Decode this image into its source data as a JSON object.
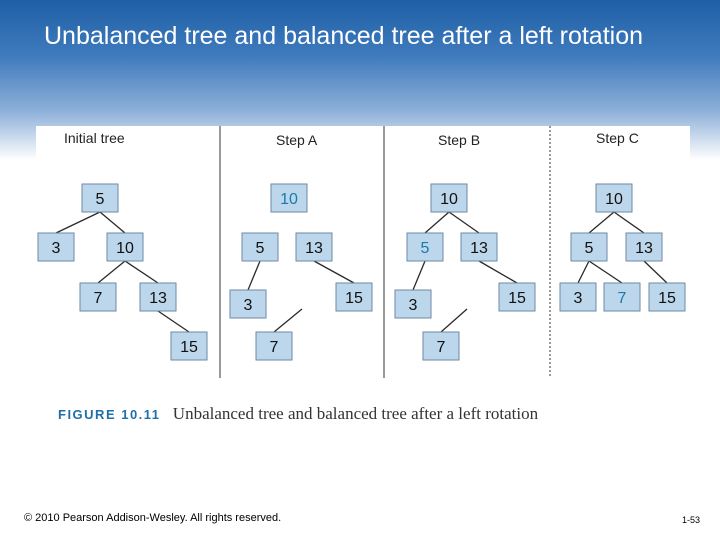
{
  "slide": {
    "title": "Unbalanced tree and balanced tree after a left rotation",
    "footer_copyright": "© 2010 Pearson Addison-Wesley. All rights reserved.",
    "page_number": "1-53"
  },
  "figure": {
    "label": "FIGURE 10.11",
    "caption": "Unbalanced tree and balanced tree after a left rotation",
    "panels": [
      {
        "title": "Initial tree"
      },
      {
        "title": "Step A"
      },
      {
        "title": "Step B"
      },
      {
        "title": "Step C"
      }
    ]
  },
  "colors": {
    "node_fill": "#bcd6ec",
    "node_stroke": "#6e8aa3",
    "highlight_text": "#1b7aa8",
    "edge": "#2a2a2a"
  },
  "trees": [
    {
      "panel": "Initial tree",
      "nodes": [
        {
          "id": "n5",
          "value": "5"
        },
        {
          "id": "n3",
          "value": "3"
        },
        {
          "id": "n10",
          "value": "10"
        },
        {
          "id": "n7",
          "value": "7"
        },
        {
          "id": "n13",
          "value": "13"
        },
        {
          "id": "n15",
          "value": "15"
        }
      ],
      "edges": [
        [
          "n5",
          "n3"
        ],
        [
          "n5",
          "n10"
        ],
        [
          "n10",
          "n7"
        ],
        [
          "n10",
          "n13"
        ],
        [
          "n13",
          "n15"
        ]
      ]
    },
    {
      "panel": "Step A",
      "nodes": [
        {
          "id": "n10",
          "value": "10",
          "highlight": true
        },
        {
          "id": "n5",
          "value": "5"
        },
        {
          "id": "n13",
          "value": "13"
        },
        {
          "id": "n3",
          "value": "3"
        },
        {
          "id": "n15",
          "value": "15"
        },
        {
          "id": "n7",
          "value": "7"
        }
      ],
      "edges": [
        [
          "n5",
          "n3"
        ],
        [
          "n13",
          "n15"
        ],
        [
          "n7",
          "*"
        ]
      ]
    },
    {
      "panel": "Step B",
      "nodes": [
        {
          "id": "n10",
          "value": "10"
        },
        {
          "id": "n5",
          "value": "5",
          "highlight": true
        },
        {
          "id": "n13",
          "value": "13"
        },
        {
          "id": "n3",
          "value": "3"
        },
        {
          "id": "n15",
          "value": "15"
        },
        {
          "id": "n7",
          "value": "7"
        }
      ],
      "edges": [
        [
          "n10",
          "n5"
        ],
        [
          "n10",
          "n13"
        ],
        [
          "n5",
          "n3"
        ],
        [
          "n13",
          "n15"
        ],
        [
          "n7",
          "*"
        ]
      ]
    },
    {
      "panel": "Step C",
      "nodes": [
        {
          "id": "n10",
          "value": "10"
        },
        {
          "id": "n5",
          "value": "5"
        },
        {
          "id": "n13",
          "value": "13"
        },
        {
          "id": "n3",
          "value": "3"
        },
        {
          "id": "n7",
          "value": "7",
          "highlight": true
        },
        {
          "id": "n15",
          "value": "15"
        }
      ],
      "edges": [
        [
          "n10",
          "n5"
        ],
        [
          "n10",
          "n13"
        ],
        [
          "n5",
          "n3"
        ],
        [
          "n5",
          "n7"
        ],
        [
          "n13",
          "n15"
        ]
      ]
    }
  ]
}
